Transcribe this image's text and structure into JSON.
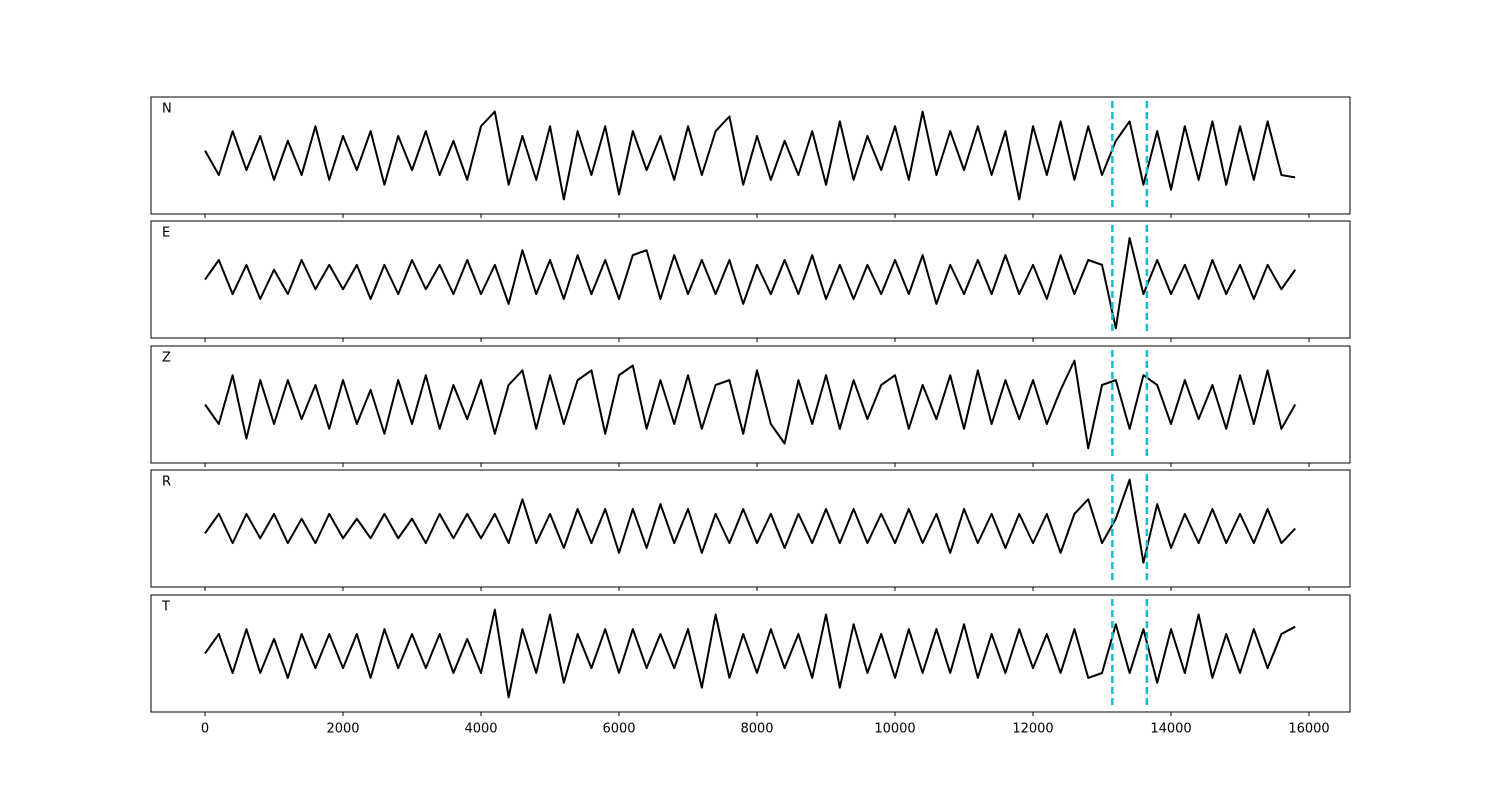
{
  "chart_data": {
    "type": "line",
    "x": [
      0,
      200,
      400,
      600,
      800,
      1000,
      1200,
      1400,
      1600,
      1800,
      2000,
      2200,
      2400,
      2600,
      2800,
      3000,
      3200,
      3400,
      3600,
      3800,
      4000,
      4200,
      4400,
      4600,
      4800,
      5000,
      5200,
      5400,
      5600,
      5800,
      6000,
      6200,
      6400,
      6600,
      6800,
      7000,
      7200,
      7400,
      7600,
      7800,
      8000,
      8200,
      8400,
      8600,
      8800,
      9000,
      9200,
      9400,
      9600,
      9800,
      10000,
      10200,
      10400,
      10600,
      10800,
      11000,
      11200,
      11400,
      11600,
      11800,
      12000,
      12200,
      12400,
      12600,
      12800,
      13000,
      13200,
      13400,
      13600,
      13800,
      14000,
      14200,
      14400,
      14600,
      14800,
      15000,
      15200,
      15400,
      15600,
      15800
    ],
    "series": [
      {
        "name": "N",
        "color": "#000000",
        "values": [
          0.1,
          -0.4,
          0.5,
          -0.3,
          0.4,
          -0.5,
          0.3,
          -0.4,
          0.6,
          -0.5,
          0.4,
          -0.3,
          0.5,
          -0.6,
          0.4,
          -0.3,
          0.5,
          -0.4,
          0.3,
          -0.5,
          0.6,
          0.9,
          -0.6,
          0.4,
          -0.5,
          0.6,
          -0.9,
          0.5,
          -0.4,
          0.6,
          -0.8,
          0.5,
          -0.3,
          0.4,
          -0.5,
          0.6,
          -0.4,
          0.5,
          0.8,
          -0.6,
          0.4,
          -0.5,
          0.3,
          -0.4,
          0.5,
          -0.6,
          0.7,
          -0.5,
          0.4,
          -0.3,
          0.6,
          -0.5,
          0.9,
          -0.4,
          0.5,
          -0.3,
          0.6,
          -0.4,
          0.5,
          -0.9,
          0.6,
          -0.4,
          0.7,
          -0.5,
          0.6,
          -0.4,
          0.3,
          0.7,
          -0.6,
          0.5,
          -0.7,
          0.6,
          -0.5,
          0.7,
          -0.6,
          0.6,
          -0.5,
          0.7,
          -0.4,
          -0.45
        ]
      },
      {
        "name": "E",
        "color": "#000000",
        "values": [
          0.0,
          0.4,
          -0.3,
          0.3,
          -0.4,
          0.2,
          -0.3,
          0.4,
          -0.2,
          0.3,
          -0.2,
          0.3,
          -0.4,
          0.3,
          -0.3,
          0.4,
          -0.2,
          0.3,
          -0.3,
          0.4,
          -0.3,
          0.3,
          -0.5,
          0.6,
          -0.3,
          0.4,
          -0.4,
          0.5,
          -0.3,
          0.4,
          -0.4,
          0.5,
          0.6,
          -0.4,
          0.5,
          -0.3,
          0.4,
          -0.3,
          0.4,
          -0.5,
          0.3,
          -0.3,
          0.4,
          -0.3,
          0.5,
          -0.4,
          0.3,
          -0.4,
          0.3,
          -0.3,
          0.4,
          -0.3,
          0.5,
          -0.5,
          0.3,
          -0.3,
          0.4,
          -0.3,
          0.5,
          -0.3,
          0.3,
          -0.4,
          0.5,
          -0.3,
          0.4,
          0.3,
          -1.0,
          0.85,
          -0.3,
          0.4,
          -0.3,
          0.3,
          -0.4,
          0.4,
          -0.3,
          0.3,
          -0.4,
          0.3,
          -0.2,
          0.2
        ]
      },
      {
        "name": "Z",
        "color": "#000000",
        "values": [
          0.0,
          -0.4,
          0.6,
          -0.7,
          0.5,
          -0.4,
          0.5,
          -0.3,
          0.4,
          -0.5,
          0.5,
          -0.4,
          0.3,
          -0.6,
          0.5,
          -0.4,
          0.6,
          -0.5,
          0.4,
          -0.3,
          0.5,
          -0.6,
          0.4,
          0.7,
          -0.5,
          0.6,
          -0.4,
          0.5,
          0.7,
          -0.6,
          0.6,
          0.8,
          -0.5,
          0.5,
          -0.4,
          0.6,
          -0.5,
          0.4,
          0.5,
          -0.6,
          0.7,
          -0.4,
          -0.8,
          0.5,
          -0.4,
          0.6,
          -0.5,
          0.5,
          -0.3,
          0.4,
          0.6,
          -0.5,
          0.4,
          -0.3,
          0.6,
          -0.5,
          0.7,
          -0.4,
          0.5,
          -0.3,
          0.5,
          -0.4,
          0.3,
          0.9,
          -0.9,
          0.4,
          0.5,
          -0.5,
          0.6,
          0.4,
          -0.4,
          0.5,
          -0.3,
          0.4,
          -0.5,
          0.6,
          -0.4,
          0.7,
          -0.5,
          0.0
        ]
      },
      {
        "name": "R",
        "color": "#000000",
        "values": [
          -0.1,
          0.3,
          -0.3,
          0.3,
          -0.2,
          0.3,
          -0.3,
          0.2,
          -0.3,
          0.3,
          -0.2,
          0.2,
          -0.2,
          0.3,
          -0.2,
          0.2,
          -0.3,
          0.3,
          -0.2,
          0.3,
          -0.2,
          0.3,
          -0.3,
          0.6,
          -0.3,
          0.3,
          -0.4,
          0.4,
          -0.3,
          0.4,
          -0.5,
          0.4,
          -0.4,
          0.5,
          -0.3,
          0.4,
          -0.5,
          0.3,
          -0.3,
          0.4,
          -0.3,
          0.3,
          -0.4,
          0.3,
          -0.3,
          0.4,
          -0.3,
          0.4,
          -0.3,
          0.3,
          -0.3,
          0.4,
          -0.3,
          0.3,
          -0.5,
          0.4,
          -0.3,
          0.3,
          -0.4,
          0.3,
          -0.3,
          0.3,
          -0.5,
          0.3,
          0.6,
          -0.3,
          0.2,
          1.0,
          -0.7,
          0.5,
          -0.4,
          0.3,
          -0.3,
          0.4,
          -0.3,
          0.3,
          -0.3,
          0.4,
          -0.3,
          0.0
        ]
      },
      {
        "name": "T",
        "color": "#000000",
        "values": [
          0.0,
          0.4,
          -0.4,
          0.5,
          -0.4,
          0.3,
          -0.5,
          0.4,
          -0.3,
          0.4,
          -0.3,
          0.4,
          -0.5,
          0.5,
          -0.3,
          0.4,
          -0.3,
          0.4,
          -0.4,
          0.3,
          -0.4,
          0.9,
          -0.9,
          0.5,
          -0.4,
          0.8,
          -0.6,
          0.4,
          -0.3,
          0.5,
          -0.4,
          0.5,
          -0.3,
          0.4,
          -0.3,
          0.5,
          -0.7,
          0.8,
          -0.5,
          0.4,
          -0.4,
          0.5,
          -0.3,
          0.4,
          -0.5,
          0.8,
          -0.7,
          0.6,
          -0.4,
          0.4,
          -0.5,
          0.5,
          -0.4,
          0.5,
          -0.4,
          0.6,
          -0.5,
          0.4,
          -0.4,
          0.5,
          -0.3,
          0.4,
          -0.4,
          0.5,
          -0.5,
          -0.4,
          0.6,
          -0.4,
          0.5,
          -0.6,
          0.5,
          -0.4,
          0.8,
          -0.5,
          0.4,
          -0.4,
          0.5,
          -0.3,
          0.4,
          0.55
        ]
      }
    ],
    "vlines": [
      13150,
      13650
    ],
    "vline_color": "#17becf",
    "xlim": [
      -783,
      16594
    ],
    "xticks": [
      0,
      2000,
      4000,
      6000,
      8000,
      10000,
      12000,
      14000,
      16000
    ],
    "ylim": [
      -1.2,
      1.2
    ]
  }
}
